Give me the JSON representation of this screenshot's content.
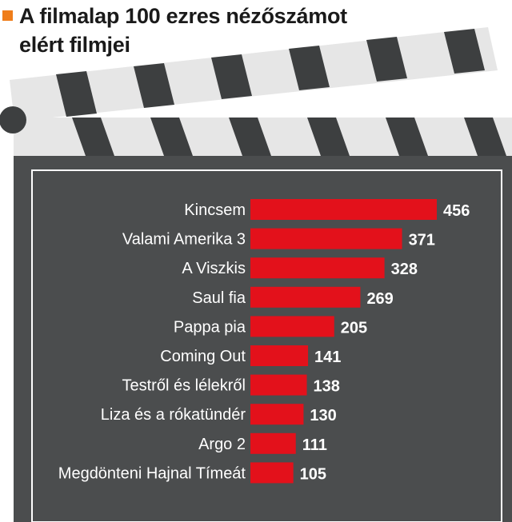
{
  "header": {
    "title_line1": "A filmalap 100 ezres nézőszámot",
    "title_line2": "elért filmjei"
  },
  "colors": {
    "accent": "#ef7d1a",
    "bar": "#e3111b",
    "board": "#4b4d4e",
    "clapper_stripe": "#3d3f40",
    "clapper_light": "#e6e6e6"
  },
  "chart_data": {
    "type": "bar",
    "orientation": "horizontal",
    "title": "A filmalap 100 ezres nézőszámot elért filmjei",
    "categories": [
      "Kincsem",
      "Valami  Amerika 3",
      "A Viszkis",
      "Saul fia",
      "Pappa pia",
      "Coming Out",
      "Testről és lélekről",
      "Liza és a rókatündér",
      "Argo 2",
      "Megdönteni Hajnal Tímeát"
    ],
    "values": [
      456,
      371,
      328,
      269,
      205,
      141,
      138,
      130,
      111,
      105
    ],
    "xlim": [
      0,
      456
    ],
    "grid": false,
    "legend": "none"
  }
}
